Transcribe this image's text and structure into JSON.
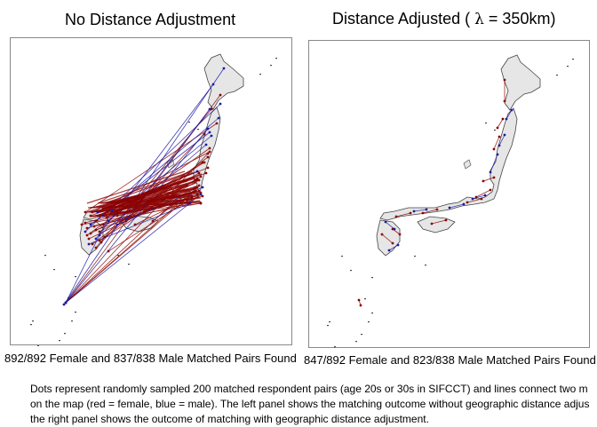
{
  "left_panel": {
    "title": "No Distance Adjustment",
    "caption": "892/892 Female and 837/838 Male Matched Pairs Found"
  },
  "right_panel": {
    "title_prefix": "Distance Adjusted (",
    "title_symbol": "λ",
    "title_suffix": "= 350km)",
    "caption": "847/892 Female and 823/838 Male Matched Pairs Found"
  },
  "note_lines": [
    "Dots represent randomly sampled 200 matched respondent pairs (age 20s or 30s in SIFCCT) and lines connect two m",
    "on the map (red = female, blue = male). The left panel shows the matching outcome without geographic distance adjus",
    "the right panel shows the outcome of matching with geographic distance adjustment."
  ],
  "colors": {
    "female": "#8b0000",
    "male": "#1a1aa6",
    "land": "#e6e6e6",
    "coast": "#444444",
    "frame": "#888888"
  }
}
